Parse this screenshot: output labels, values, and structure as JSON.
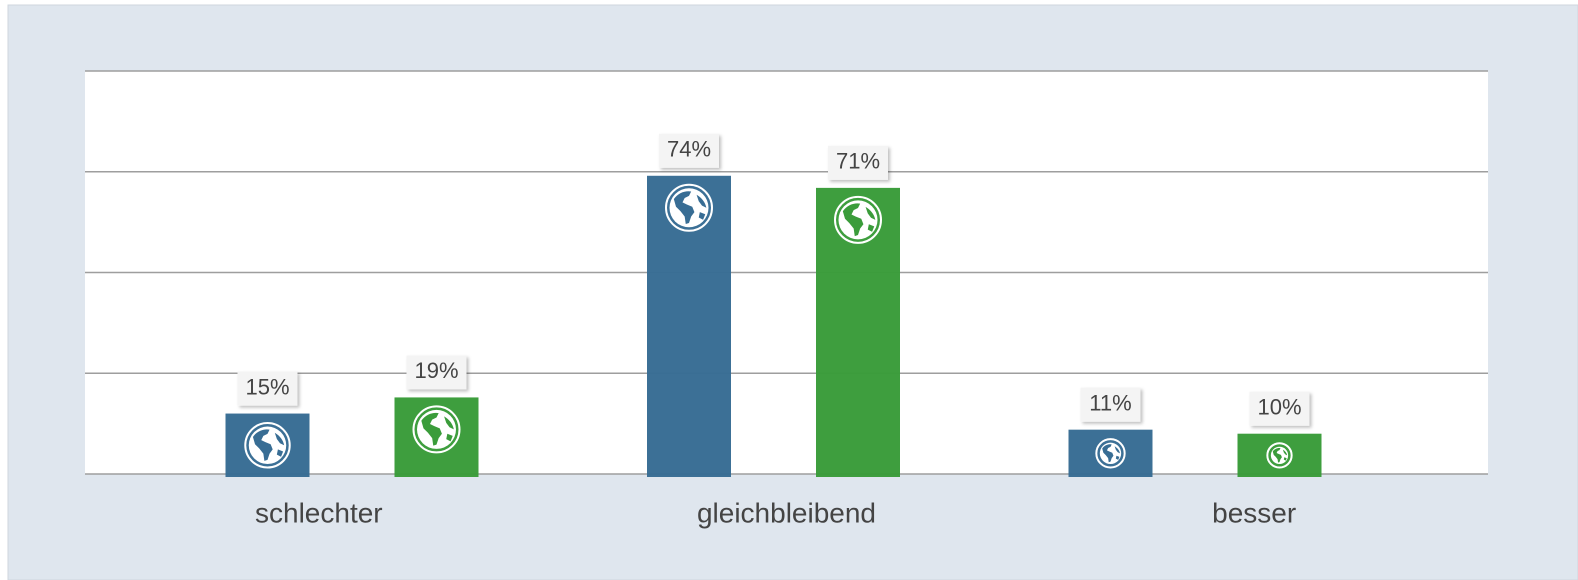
{
  "chart_data": {
    "type": "bar",
    "categories": [
      "schlechter",
      "gleichbleibend",
      "besser"
    ],
    "series": [
      {
        "color": "#386d94",
        "values": [
          15,
          74,
          11
        ],
        "value_labels": [
          "15%",
          "74%",
          "11%"
        ]
      },
      {
        "color": "#3a9c3a",
        "values": [
          19,
          71,
          10
        ],
        "value_labels": [
          "19%",
          "71%",
          "10%"
        ]
      }
    ],
    "ylim": [
      0,
      100
    ],
    "yticks": [
      0,
      25,
      50,
      75,
      100
    ],
    "grid": true
  }
}
